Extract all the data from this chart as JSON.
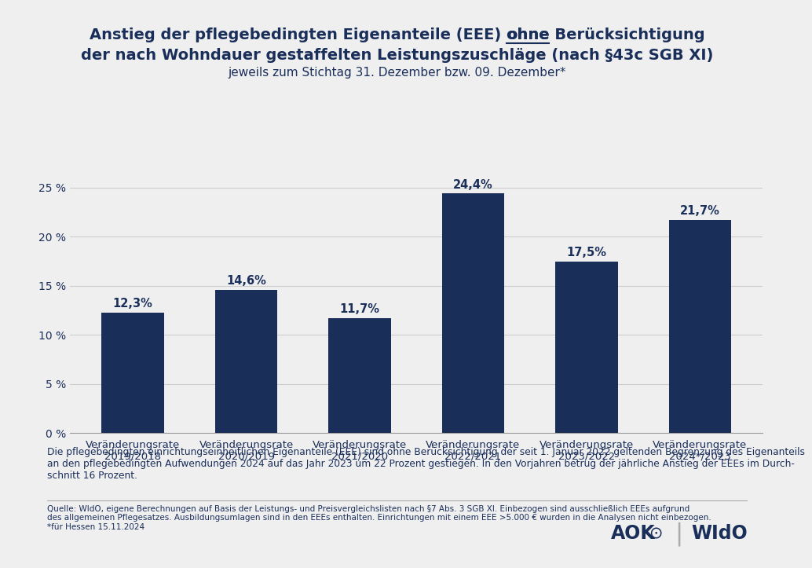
{
  "title_line1": "Anstieg der pflegebedingten Eigenanteile (EEE) ohne Berücksichtigung",
  "title_line2": "der nach Wohndauer gestaffelten Leistungszuschläge (nach §43c SGB XI)",
  "subtitle": "jeweils zum Stichtag 31. Dezember bzw. 09. Dezember*",
  "categories": [
    "Veränderungsrate\n2019/2018",
    "Veränderungsrate\n2020/2019",
    "Veränderungsrate\n2021/2020",
    "Veränderungsrate\n2022/2021",
    "Veränderungsrate\n2023/2022",
    "Veränderungsrate\n2024*/2023"
  ],
  "values": [
    12.3,
    14.6,
    11.7,
    24.4,
    17.5,
    21.7
  ],
  "bar_color": "#1a2e5a",
  "background_color": "#efefef",
  "plot_bg_color": "#efefef",
  "ylim": [
    0,
    27
  ],
  "yticks": [
    0,
    5,
    10,
    15,
    20,
    25
  ],
  "ytick_labels": [
    "0 %",
    "5 %",
    "10 %",
    "15 %",
    "20 %",
    "25 %"
  ],
  "value_labels": [
    "12,3%",
    "14,6%",
    "11,7%",
    "24,4%",
    "17,5%",
    "21,7%"
  ],
  "footer_text": "Die pflegebedingten einrichtungseinheitlichen Eigenanteile (EEE) sind ohne Berücksichtigung der seit 1. Januar 2022 geltenden Begrenzung des Eigenanteils\nan den pflegebedingten Aufwendungen 2024 auf das Jahr 2023 um 22 Prozent gestiegen. In den Vorjahren betrug der jährliche Anstieg der EEEs im Durch-\nschnitt 16 Prozent.",
  "source_text": "Quelle: WIdO, eigene Berechnungen auf Basis der Leistungs- und Preisvergleichslisten nach §7 Abs. 3 SGB XI. Einbezogen sind ausschließlich EEEs aufgrund\ndes allgemeinen Pflegesatzes. Ausbildungsumlagen sind in den EEEs enthalten. Einrichtungen mit einem EEE >5.000 € wurden in die Analysen nicht einbezogen.\n*für Hessen 15.11.2024",
  "title_color": "#1a2e5a",
  "subtitle_color": "#1a2e5a",
  "bar_label_color": "#1a2e5a",
  "grid_color": "#cccccc",
  "tick_label_color": "#1a2e5a",
  "footer_color": "#1a2e5a",
  "ohne_prefix": "Anstieg der pflegebedingten Eigenanteile (EEE) ",
  "ohne_word": "ohne",
  "ohne_suffix": " Berücksichtigung"
}
